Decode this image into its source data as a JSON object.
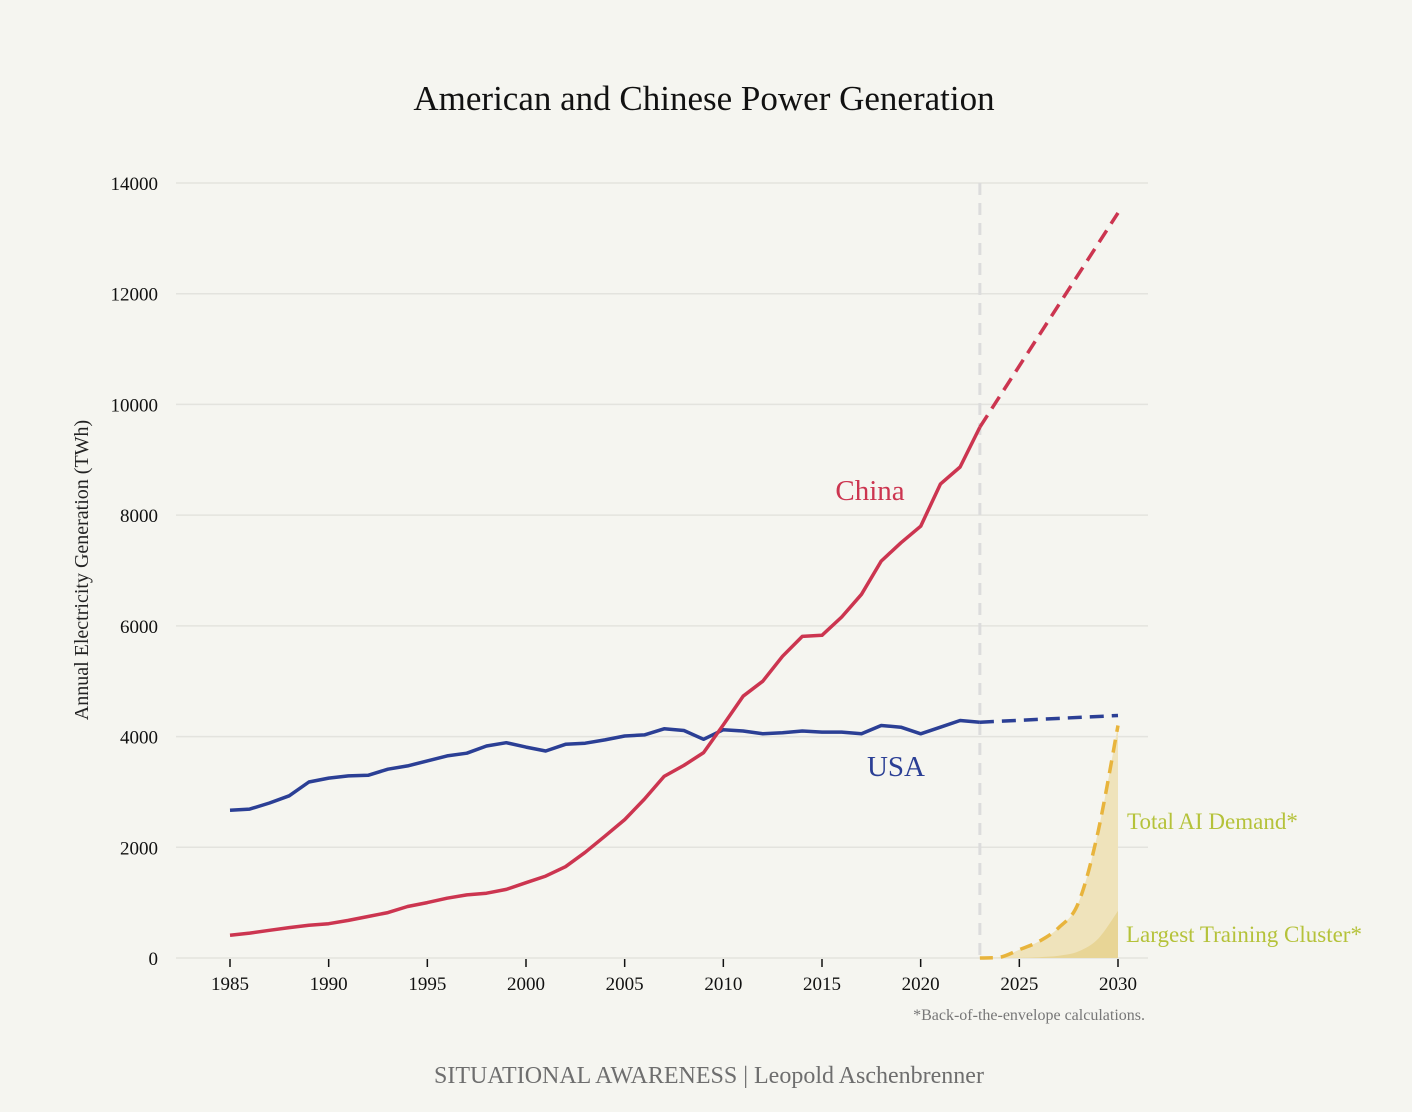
{
  "chart_data": {
    "type": "line",
    "title": "American and Chinese Power Generation",
    "xlabel": "",
    "ylabel": "Annual Electricity Generation (TWh)",
    "xlim": [
      1982,
      2031.5
    ],
    "ylim": [
      0,
      14000
    ],
    "x_ticks": [
      1985,
      1990,
      1995,
      2000,
      2005,
      2010,
      2015,
      2020,
      2025,
      2030
    ],
    "y_ticks": [
      0,
      2000,
      4000,
      6000,
      8000,
      10000,
      12000,
      14000
    ],
    "grid": "horizontal",
    "legend": "inline labels",
    "projection_start_year": 2023,
    "series": [
      {
        "name": "USA",
        "label": "USA",
        "color": "#2b3f95",
        "historical": {
          "x": [
            1985,
            1986,
            1987,
            1988,
            1989,
            1990,
            1991,
            1992,
            1993,
            1994,
            1995,
            1996,
            1997,
            1998,
            1999,
            2000,
            2001,
            2002,
            2003,
            2004,
            2005,
            2006,
            2007,
            2008,
            2009,
            2010,
            2011,
            2012,
            2013,
            2014,
            2015,
            2016,
            2017,
            2018,
            2019,
            2020,
            2021,
            2022,
            2023
          ],
          "y": [
            2670,
            2690,
            2800,
            2930,
            3180,
            3250,
            3290,
            3300,
            3410,
            3470,
            3560,
            3650,
            3700,
            3830,
            3890,
            3810,
            3740,
            3860,
            3880,
            3940,
            4010,
            4030,
            4140,
            4110,
            3950,
            4125,
            4100,
            4050,
            4070,
            4100,
            4080,
            4080,
            4050,
            4200,
            4170,
            4050,
            4170,
            4290,
            4260
          ]
        },
        "projection": {
          "x": [
            2023,
            2030
          ],
          "y": [
            4260,
            4380
          ]
        }
      },
      {
        "name": "China",
        "label": "China",
        "color": "#cc3550",
        "historical": {
          "x": [
            1985,
            1986,
            1987,
            1988,
            1989,
            1990,
            1991,
            1992,
            1993,
            1994,
            1995,
            1996,
            1997,
            1998,
            1999,
            2000,
            2001,
            2002,
            2003,
            2004,
            2005,
            2006,
            2007,
            2008,
            2009,
            2010,
            2011,
            2012,
            2013,
            2014,
            2015,
            2016,
            2017,
            2018,
            2019,
            2020,
            2021,
            2022,
            2023
          ],
          "y": [
            410,
            450,
            500,
            550,
            590,
            620,
            680,
            750,
            820,
            930,
            1000,
            1080,
            1140,
            1170,
            1240,
            1360,
            1480,
            1650,
            1910,
            2200,
            2500,
            2870,
            3280,
            3480,
            3710,
            4210,
            4730,
            5000,
            5450,
            5810,
            5830,
            6160,
            6570,
            7170,
            7500,
            7800,
            8560,
            8870,
            9590
          ]
        },
        "projection": {
          "x": [
            2023,
            2030
          ],
          "y": [
            9590,
            13460
          ]
        }
      },
      {
        "name": "Total AI Demand",
        "label": "Total AI Demand*",
        "color": "#e8b43c",
        "fill": "#efe3bb",
        "label_color": "#b5c23a",
        "x": [
          2023,
          2024,
          2025,
          2026,
          2027,
          2028,
          2029,
          2030
        ],
        "y": [
          0,
          10,
          150,
          300,
          550,
          1000,
          2300,
          4200
        ]
      },
      {
        "name": "Largest Training Cluster",
        "label": "Largest Training Cluster*",
        "fill": "#e8d596",
        "label_color": "#b5c23a",
        "x": [
          2023,
          2024,
          2025,
          2026,
          2027,
          2028,
          2029,
          2030
        ],
        "y": [
          0,
          2,
          5,
          15,
          40,
          120,
          350,
          850
        ]
      }
    ],
    "annotations": [
      "*Back-of-the-envelope calculations."
    ]
  },
  "footer": "SITUATIONAL AWARENESS | Leopold Aschenbrenner"
}
